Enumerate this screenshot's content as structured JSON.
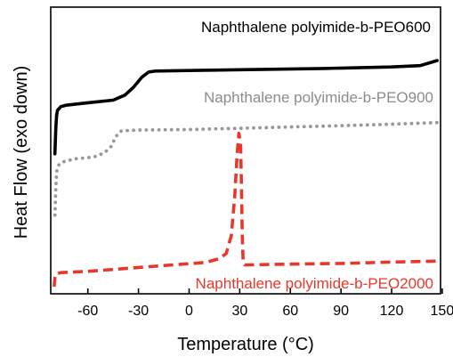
{
  "chart_data": {
    "type": "line",
    "xlabel": "Temperature (°C)",
    "ylabel": "Heat Flow (exo down)",
    "xlim": [
      -82,
      149
    ],
    "ylim": [
      0,
      100
    ],
    "xticks": [
      -60,
      -30,
      0,
      30,
      60,
      90,
      120,
      150
    ],
    "yticks_shown": false,
    "grid": false,
    "series": [
      {
        "name": "Naphthalene polyimide-b-PEO600",
        "color": "#000000",
        "style": "solid",
        "points": [
          [
            -79.5,
            52
          ],
          [
            -79,
            62
          ],
          [
            -78.5,
            67
          ],
          [
            -78,
            69
          ],
          [
            -76,
            70.5
          ],
          [
            -73,
            71
          ],
          [
            -60,
            72
          ],
          [
            -45,
            73
          ],
          [
            -38,
            75
          ],
          [
            -33,
            78
          ],
          [
            -28,
            82
          ],
          [
            -24,
            84
          ],
          [
            -20,
            84.4
          ],
          [
            0,
            84.6
          ],
          [
            40,
            85
          ],
          [
            80,
            85.4
          ],
          [
            120,
            86
          ],
          [
            137,
            86.5
          ],
          [
            142,
            87.5
          ],
          [
            147,
            88.5
          ]
        ]
      },
      {
        "name": "Naphthalene polyimide-b-PEO900",
        "color": "#999999",
        "style": "dotted",
        "points": [
          [
            -79.5,
            28
          ],
          [
            -79,
            38
          ],
          [
            -78.5,
            45
          ],
          [
            -77,
            48
          ],
          [
            -74,
            49
          ],
          [
            -68,
            50
          ],
          [
            -60,
            50.5
          ],
          [
            -55,
            51
          ],
          [
            -50,
            52.5
          ],
          [
            -46,
            55
          ],
          [
            -44,
            58
          ],
          [
            -42,
            60
          ],
          [
            -40,
            61
          ],
          [
            -30,
            61.3
          ],
          [
            0,
            61.5
          ],
          [
            30,
            62
          ],
          [
            60,
            62.5
          ],
          [
            90,
            63
          ],
          [
            120,
            63.6
          ],
          [
            147,
            64.2
          ]
        ]
      },
      {
        "name": "Naphthalene polyimide-b-PEO2000",
        "color": "#e8382b",
        "style": "dashed",
        "points": [
          [
            -80,
            0
          ],
          [
            -79.5,
            3.5
          ],
          [
            -79,
            5
          ],
          [
            -76,
            5.5
          ],
          [
            -60,
            6
          ],
          [
            -40,
            7
          ],
          [
            -20,
            8
          ],
          [
            0,
            9
          ],
          [
            10,
            9.5
          ],
          [
            18,
            11
          ],
          [
            22,
            13
          ],
          [
            25,
            20
          ],
          [
            27,
            35
          ],
          [
            28.5,
            52
          ],
          [
            29.5,
            60
          ],
          [
            30.5,
            56
          ],
          [
            31,
            40
          ],
          [
            31.5,
            20
          ],
          [
            32,
            10
          ],
          [
            33,
            8.5
          ],
          [
            40,
            8.6
          ],
          [
            60,
            8.8
          ],
          [
            90,
            9.1
          ],
          [
            120,
            9.6
          ],
          [
            147,
            10
          ]
        ]
      }
    ]
  }
}
